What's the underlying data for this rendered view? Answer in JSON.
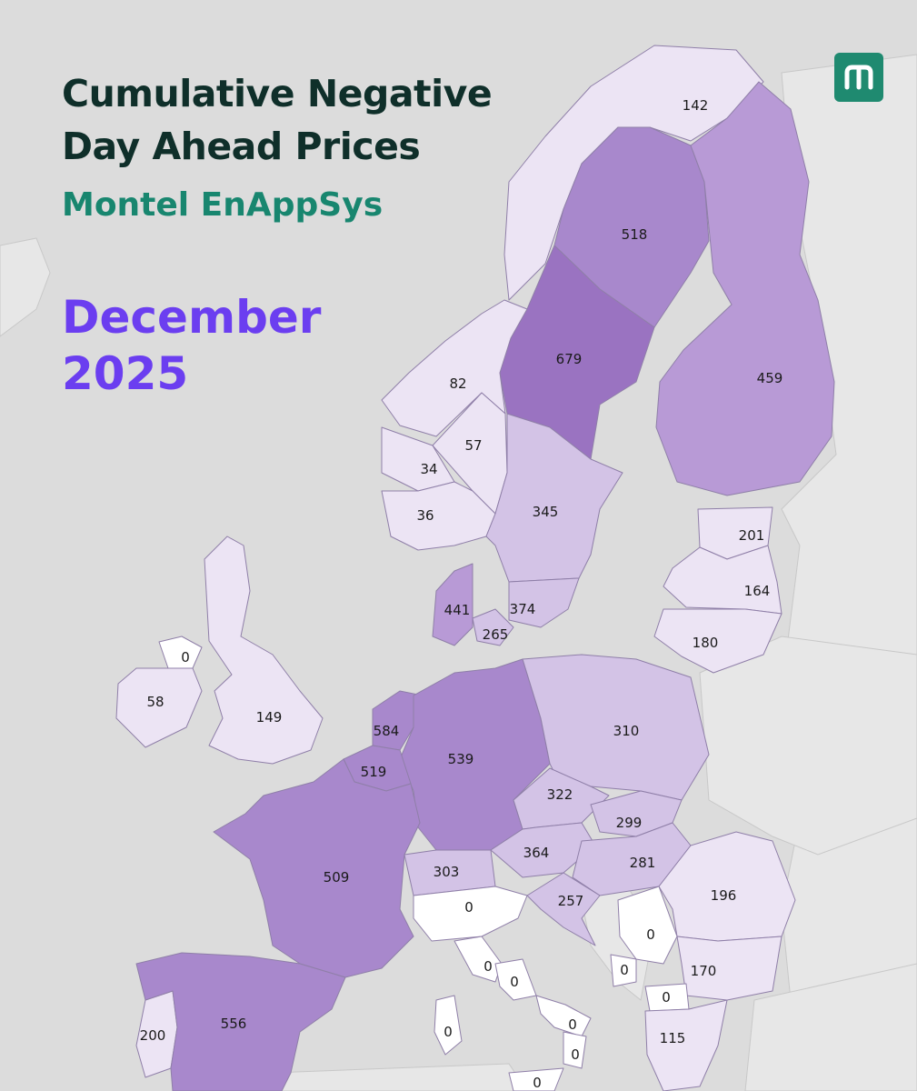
{
  "header": {
    "title_line1": "Cumulative Negative",
    "title_line2": "Day Ahead Prices",
    "subtitle": "Montel EnAppSys",
    "month": "December",
    "year": "2025"
  },
  "logo": {
    "icon": "montel-m-logo",
    "color": "#1f8a70"
  },
  "colors": {
    "scale": [
      "#ffffff",
      "#ece4f4",
      "#d3c3e6",
      "#b89ad6",
      "#a888cc",
      "#9a73c1"
    ],
    "title": "#0f2f2a",
    "subtitle": "#18866f",
    "period": "#6b3ef0"
  },
  "regions": [
    {
      "id": "no-north",
      "value": "142"
    },
    {
      "id": "se1",
      "value": "518"
    },
    {
      "id": "fi",
      "value": "459"
    },
    {
      "id": "se2",
      "value": "679"
    },
    {
      "id": "no-mid",
      "value": "82"
    },
    {
      "id": "no-east",
      "value": "57"
    },
    {
      "id": "no-west",
      "value": "34"
    },
    {
      "id": "no-south",
      "value": "36"
    },
    {
      "id": "se3",
      "value": "345"
    },
    {
      "id": "ee",
      "value": "201"
    },
    {
      "id": "lv",
      "value": "164"
    },
    {
      "id": "lt",
      "value": "180"
    },
    {
      "id": "dk-west",
      "value": "441"
    },
    {
      "id": "se4",
      "value": "374"
    },
    {
      "id": "dk-east",
      "value": "265"
    },
    {
      "id": "ni",
      "value": "0"
    },
    {
      "id": "ie",
      "value": "58"
    },
    {
      "id": "gb",
      "value": "149"
    },
    {
      "id": "nl",
      "value": "584"
    },
    {
      "id": "de",
      "value": "539"
    },
    {
      "id": "pl",
      "value": "310"
    },
    {
      "id": "be",
      "value": "519"
    },
    {
      "id": "cz",
      "value": "322"
    },
    {
      "id": "sk",
      "value": "299"
    },
    {
      "id": "at",
      "value": "364"
    },
    {
      "id": "hu",
      "value": "281"
    },
    {
      "id": "fr",
      "value": "509"
    },
    {
      "id": "ch",
      "value": "303"
    },
    {
      "id": "ro",
      "value": "196"
    },
    {
      "id": "it-north",
      "value": "0"
    },
    {
      "id": "si-hr",
      "value": "257"
    },
    {
      "id": "rs",
      "value": "0"
    },
    {
      "id": "it-cnorth",
      "value": "0"
    },
    {
      "id": "it-csouth",
      "value": "0"
    },
    {
      "id": "me",
      "value": "0"
    },
    {
      "id": "bg",
      "value": "170"
    },
    {
      "id": "mk",
      "value": "0"
    },
    {
      "id": "pt",
      "value": "200"
    },
    {
      "id": "es",
      "value": "556"
    },
    {
      "id": "it-sardinia",
      "value": "0"
    },
    {
      "id": "it-south",
      "value": "0"
    },
    {
      "id": "it-calabria",
      "value": "0"
    },
    {
      "id": "gr",
      "value": "115"
    },
    {
      "id": "it-sicily",
      "value": "0"
    }
  ]
}
